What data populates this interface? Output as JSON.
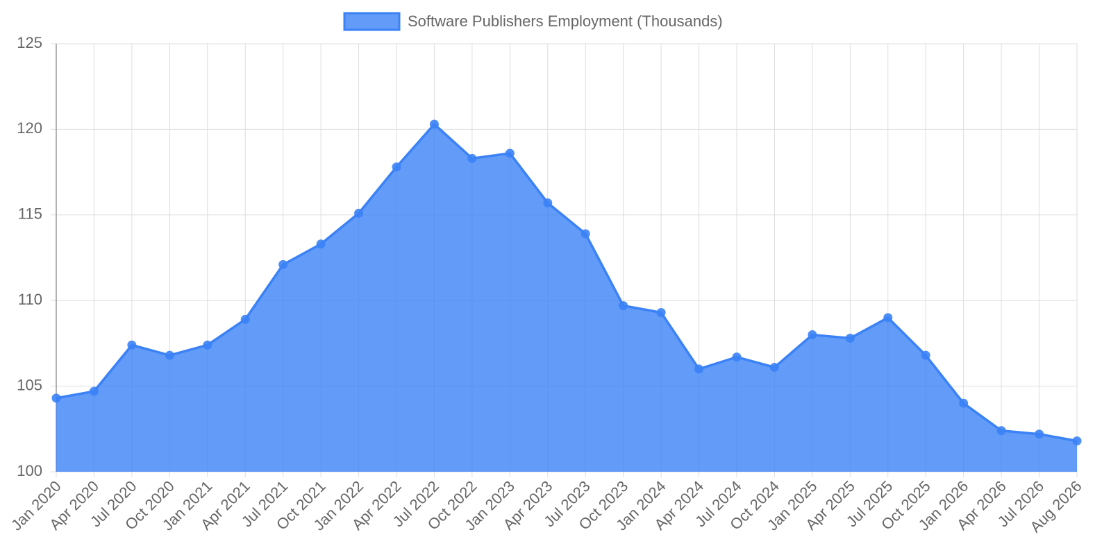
{
  "chart_data": {
    "type": "area",
    "categories": [
      "Jan 2020",
      "Apr 2020",
      "Jul 2020",
      "Oct 2020",
      "Jan 2021",
      "Apr 2021",
      "Jul 2021",
      "Oct 2021",
      "Jan 2022",
      "Apr 2022",
      "Jul 2022",
      "Oct 2022",
      "Jan 2023",
      "Apr 2023",
      "Jul 2023",
      "Oct 2023",
      "Jan 2024",
      "Apr 2024",
      "Jul 2024",
      "Oct 2024",
      "Jan 2025",
      "Apr 2025",
      "Jul 2025",
      "Oct 2025",
      "Jan 2026",
      "Apr 2026",
      "Jul 2026",
      "Aug 2026"
    ],
    "series": [
      {
        "name": "Software Publishers Employment (Thousands)",
        "color": "#3b82f6",
        "values": [
          104.3,
          104.7,
          107.4,
          106.8,
          107.4,
          108.9,
          112.1,
          113.3,
          115.1,
          117.8,
          120.3,
          118.3,
          118.6,
          115.7,
          113.9,
          109.7,
          109.3,
          106.0,
          106.7,
          106.1,
          108.0,
          107.8,
          109.0,
          106.8,
          104.0,
          102.4,
          102.2,
          101.8
        ]
      }
    ],
    "ylim": [
      100,
      125
    ],
    "yticks": [
      100,
      105,
      110,
      115,
      120,
      125
    ],
    "grid": true,
    "legend": "top"
  }
}
